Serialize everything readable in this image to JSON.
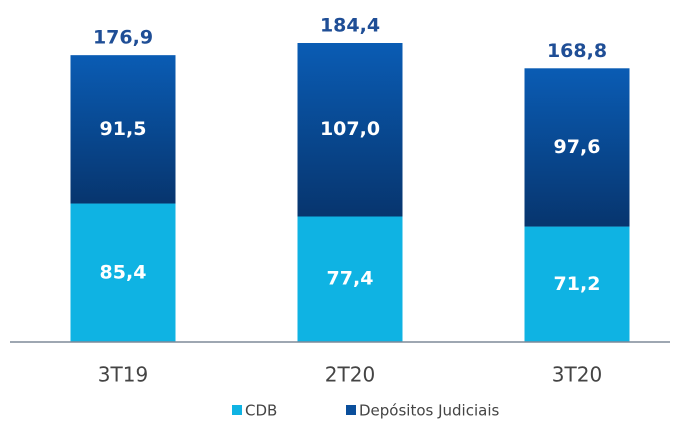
{
  "chart_data": {
    "type": "stacked_bar",
    "categories": [
      "3T19",
      "2T20",
      "3T20"
    ],
    "series": [
      {
        "name": "CDB",
        "color": "#0fb3e3",
        "values": [
          85.4,
          77.4,
          71.2
        ],
        "value_labels": [
          "85,4",
          "77,4",
          "71,2"
        ]
      },
      {
        "name": "Depósitos Judiciais",
        "color": "#0a4f9c",
        "values": [
          91.5,
          107.0,
          97.6
        ],
        "value_labels": [
          "91,5",
          "107,0",
          "97,6"
        ]
      }
    ],
    "totals": [
      176.9,
      184.4,
      168.8
    ],
    "total_labels": [
      "176,9",
      "184,4",
      "168,8"
    ],
    "total_color": "#1f4e96"
  }
}
